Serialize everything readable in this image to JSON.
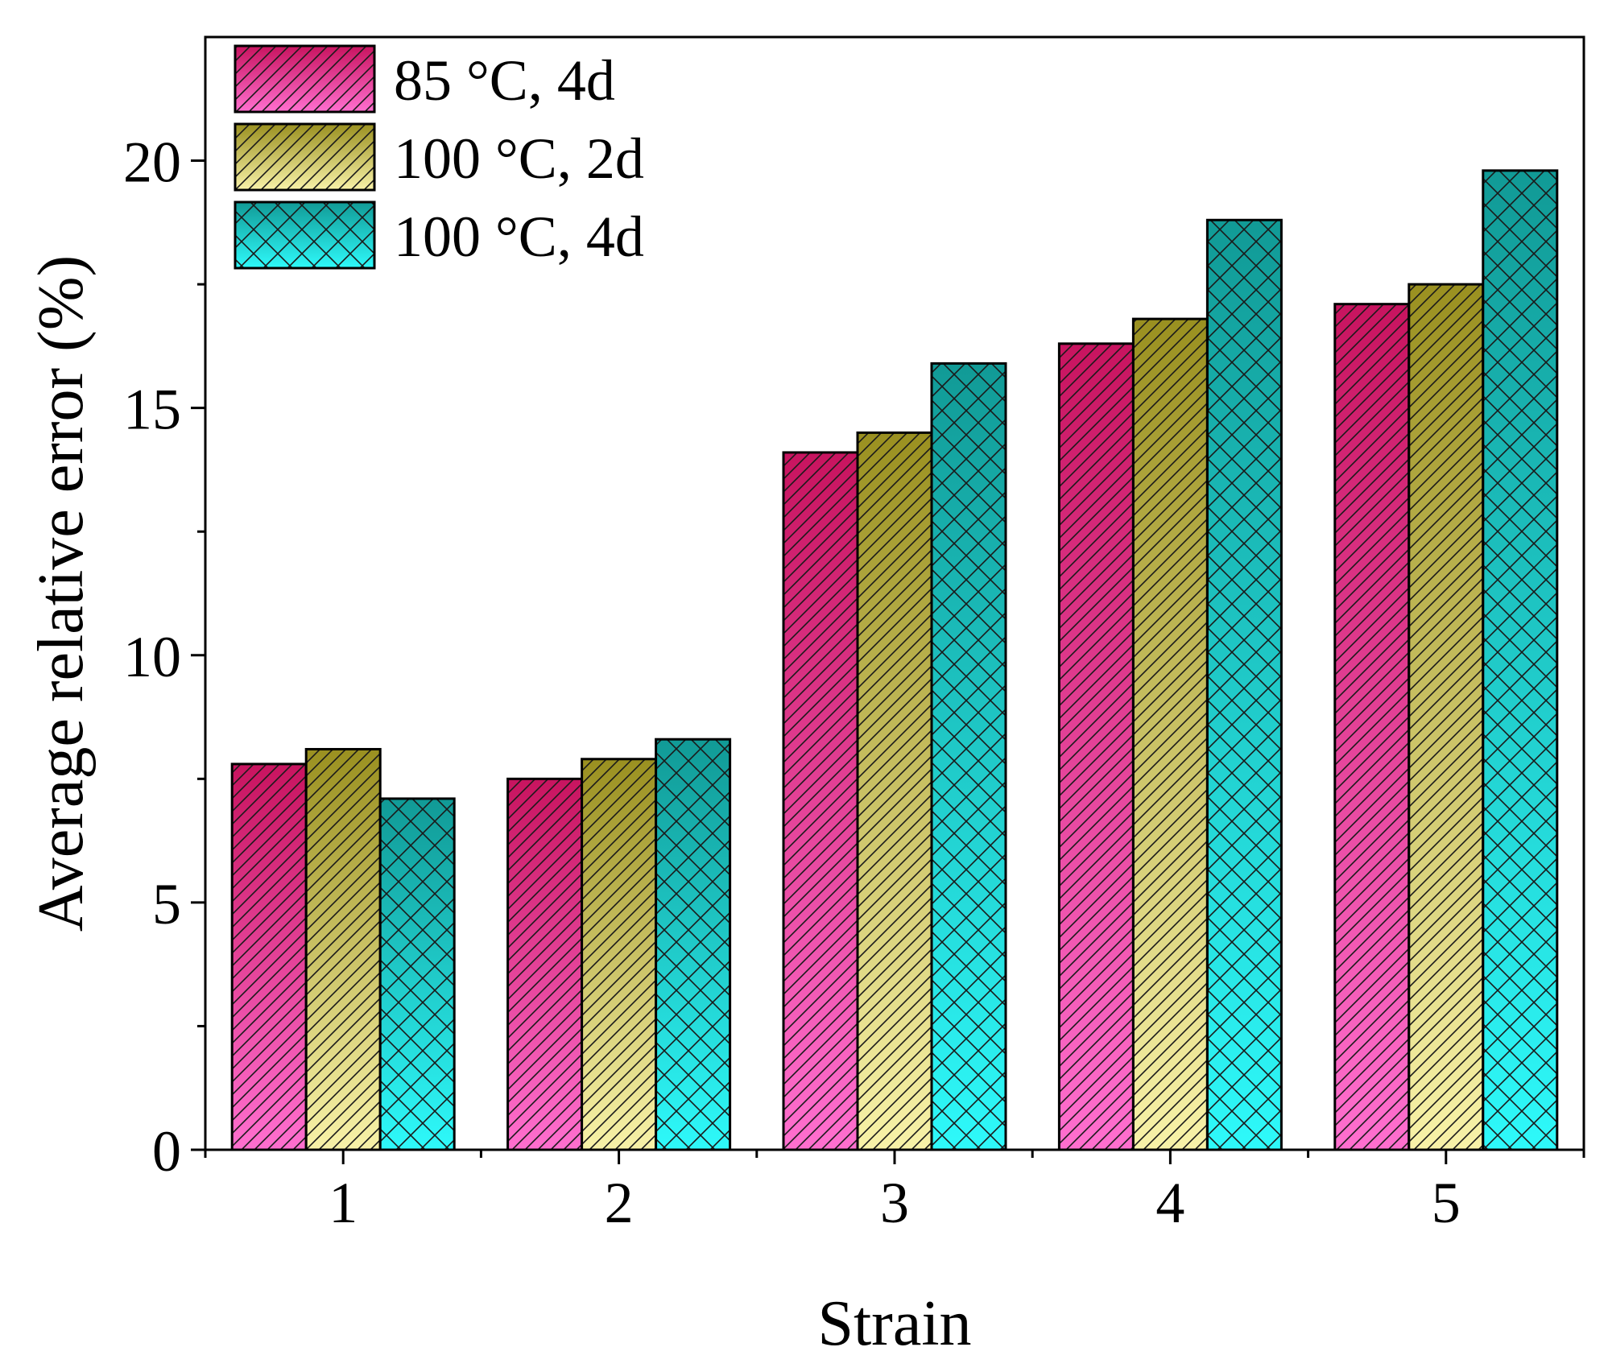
{
  "chart_data": {
    "type": "bar",
    "title": "",
    "xlabel": "Strain",
    "ylabel": "Average relative error (%)",
    "categories": [
      "1",
      "2",
      "3",
      "4",
      "5"
    ],
    "ylim": [
      0,
      22.5
    ],
    "yticks": [
      0,
      5,
      10,
      15,
      20
    ],
    "yticks_labels": [
      "0",
      "5",
      "10",
      "15",
      "20"
    ],
    "legend_position": "top-left",
    "series": [
      {
        "name": "85 °C, 4d",
        "values": [
          7.8,
          7.5,
          14.1,
          16.3,
          17.1
        ],
        "color_top": "#c8145f",
        "color_bottom": "#ff6fcf",
        "pattern": "diagonal"
      },
      {
        "name": "100 °C, 2d",
        "values": [
          8.1,
          7.9,
          14.5,
          16.8,
          17.5
        ],
        "color_top": "#9a9020",
        "color_bottom": "#f8f2a8",
        "pattern": "diagonal"
      },
      {
        "name": "100 °C, 4d",
        "values": [
          7.1,
          8.3,
          15.9,
          18.8,
          19.8
        ],
        "color_top": "#119a96",
        "color_bottom": "#2ef9fa",
        "pattern": "crosshatch"
      }
    ]
  }
}
